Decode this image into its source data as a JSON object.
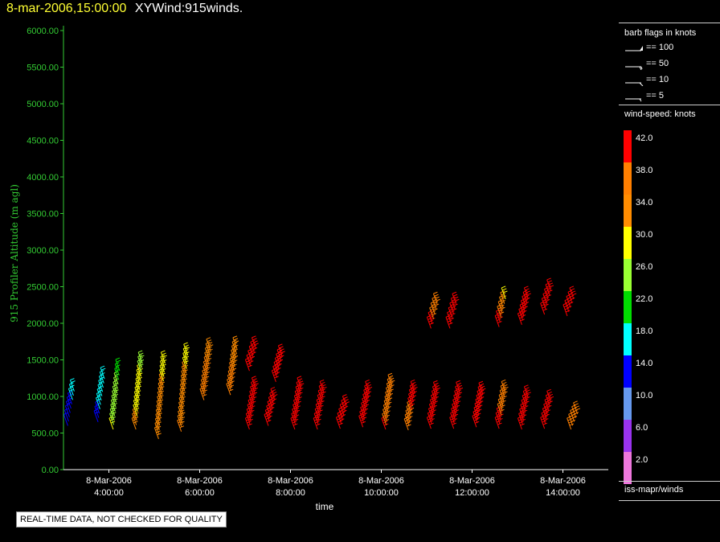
{
  "header": {
    "timestamp": "8-mar-2006,15:00:00",
    "name": "XYWind:915winds."
  },
  "legend": {
    "barb_title": "barb flags in knots",
    "barbs": [
      {
        "label": "== 100",
        "kind": "pennant"
      },
      {
        "label": "== 50",
        "kind": "flag"
      },
      {
        "label": "== 10",
        "kind": "full"
      },
      {
        "label": "== 5",
        "kind": "half"
      }
    ],
    "colorbar_title": "wind-speed: knots",
    "colorbar": [
      {
        "label": "42.0",
        "color": "#ff0000"
      },
      {
        "label": "38.0",
        "color": "#ff7f00"
      },
      {
        "label": "34.0",
        "color": "#ff8c00"
      },
      {
        "label": "30.0",
        "color": "#ffff00"
      },
      {
        "label": "26.0",
        "color": "#99ff33"
      },
      {
        "label": "22.0",
        "color": "#00dd00"
      },
      {
        "label": "18.0",
        "color": "#00ffff"
      },
      {
        "label": "14.0",
        "color": "#0000ff"
      },
      {
        "label": "10.0",
        "color": "#6699ee"
      },
      {
        "label": "6.0",
        "color": "#9933ee"
      },
      {
        "label": "2.0",
        "color": "#ee77dd"
      }
    ],
    "source": "iss-mapr/winds"
  },
  "notice": "REAL-TIME DATA, NOT CHECKED FOR QUALITY",
  "chart_data": {
    "type": "scatter",
    "xlabel": "time",
    "ylabel": "915 Profiler Altitude (m agl)",
    "xlim": [
      "03:00",
      "15:00"
    ],
    "ylim": [
      0,
      6000
    ],
    "yticks": [
      "0.00",
      "500.00",
      "1000.00",
      "1500.00",
      "2000.00",
      "2500.00",
      "3000.00",
      "3500.00",
      "4000.00",
      "4500.00",
      "5000.00",
      "5500.00",
      "6000.00"
    ],
    "xticks": [
      {
        "t": "04:00",
        "date": "8-Mar-2006",
        "time": "4:00:00"
      },
      {
        "t": "06:00",
        "date": "8-Mar-2006",
        "time": "6:00:00"
      },
      {
        "t": "08:00",
        "date": "8-Mar-2006",
        "time": "8:00:00"
      },
      {
        "t": "10:00",
        "date": "8-Mar-2006",
        "time": "10:00:00"
      },
      {
        "t": "12:00",
        "date": "8-Mar-2006",
        "time": "12:00:00"
      },
      {
        "t": "14:00",
        "date": "8-Mar-2006",
        "time": "14:00:00"
      }
    ],
    "profiles": [
      {
        "t": "03:10",
        "z0": 600,
        "z1": 1070,
        "spd0": 14,
        "spd1": 17
      },
      {
        "t": "03:50",
        "z0": 650,
        "z1": 1240,
        "spd0": 15,
        "spd1": 19
      },
      {
        "t": "04:10",
        "z0": 550,
        "z1": 1350,
        "spd0": 28,
        "spd1": 23
      },
      {
        "t": "04:40",
        "z0": 550,
        "z1": 1450,
        "spd0": 33,
        "spd1": 27
      },
      {
        "t": "05:10",
        "z0": 420,
        "z1": 1450,
        "spd0": 35,
        "spd1": 31
      },
      {
        "t": "05:40",
        "z0": 520,
        "z1": 1560,
        "spd0": 36,
        "spd1": 31
      },
      {
        "t": "06:10",
        "z0": 950,
        "z1": 1630,
        "spd0": 38,
        "spd1": 35
      },
      {
        "t": "06:45",
        "z0": 1020,
        "z1": 1650,
        "spd0": 38,
        "spd1": 34
      },
      {
        "t": "07:10",
        "z0": 1350,
        "z1": 1650,
        "spd0": 42,
        "spd1": 42
      },
      {
        "t": "07:10",
        "z0": 550,
        "z1": 1100,
        "spd0": 42,
        "spd1": 42
      },
      {
        "t": "07:35",
        "z0": 600,
        "z1": 950,
        "spd0": 42,
        "spd1": 42
      },
      {
        "t": "07:45",
        "z0": 1200,
        "z1": 1540,
        "spd0": 42,
        "spd1": 42
      },
      {
        "t": "08:10",
        "z0": 550,
        "z1": 1100,
        "spd0": 42,
        "spd1": 42
      },
      {
        "t": "08:40",
        "z0": 550,
        "z1": 1050,
        "spd0": 42,
        "spd1": 42
      },
      {
        "t": "09:10",
        "z0": 560,
        "z1": 850,
        "spd0": 42,
        "spd1": 42
      },
      {
        "t": "09:40",
        "z0": 580,
        "z1": 1050,
        "spd0": 42,
        "spd1": 42
      },
      {
        "t": "10:10",
        "z0": 550,
        "z1": 1140,
        "spd0": 40,
        "spd1": 38
      },
      {
        "t": "10:40",
        "z0": 540,
        "z1": 1050,
        "spd0": 38,
        "spd1": 42
      },
      {
        "t": "11:10",
        "z0": 560,
        "z1": 1040,
        "spd0": 42,
        "spd1": 42
      },
      {
        "t": "11:10",
        "z0": 1930,
        "z1": 2250,
        "spd0": 42,
        "spd1": 36
      },
      {
        "t": "11:35",
        "z0": 1930,
        "z1": 2250,
        "spd0": 42,
        "spd1": 42
      },
      {
        "t": "11:40",
        "z0": 560,
        "z1": 1040,
        "spd0": 42,
        "spd1": 42
      },
      {
        "t": "12:10",
        "z0": 580,
        "z1": 1030,
        "spd0": 42,
        "spd1": 42
      },
      {
        "t": "12:40",
        "z0": 560,
        "z1": 1050,
        "spd0": 42,
        "spd1": 36
      },
      {
        "t": "12:40",
        "z0": 1950,
        "z1": 2330,
        "spd0": 42,
        "spd1": 30
      },
      {
        "t": "13:10",
        "z0": 1980,
        "z1": 2330,
        "spd0": 42,
        "spd1": 42
      },
      {
        "t": "13:10",
        "z0": 550,
        "z1": 980,
        "spd0": 42,
        "spd1": 40
      },
      {
        "t": "13:40",
        "z0": 560,
        "z1": 920,
        "spd0": 42,
        "spd1": 42
      },
      {
        "t": "13:40",
        "z0": 2120,
        "z1": 2440,
        "spd0": 42,
        "spd1": 42
      },
      {
        "t": "14:10",
        "z0": 2100,
        "z1": 2330,
        "spd0": 42,
        "spd1": 42
      },
      {
        "t": "14:15",
        "z0": 550,
        "z1": 760,
        "spd0": 36,
        "spd1": 36
      }
    ]
  }
}
